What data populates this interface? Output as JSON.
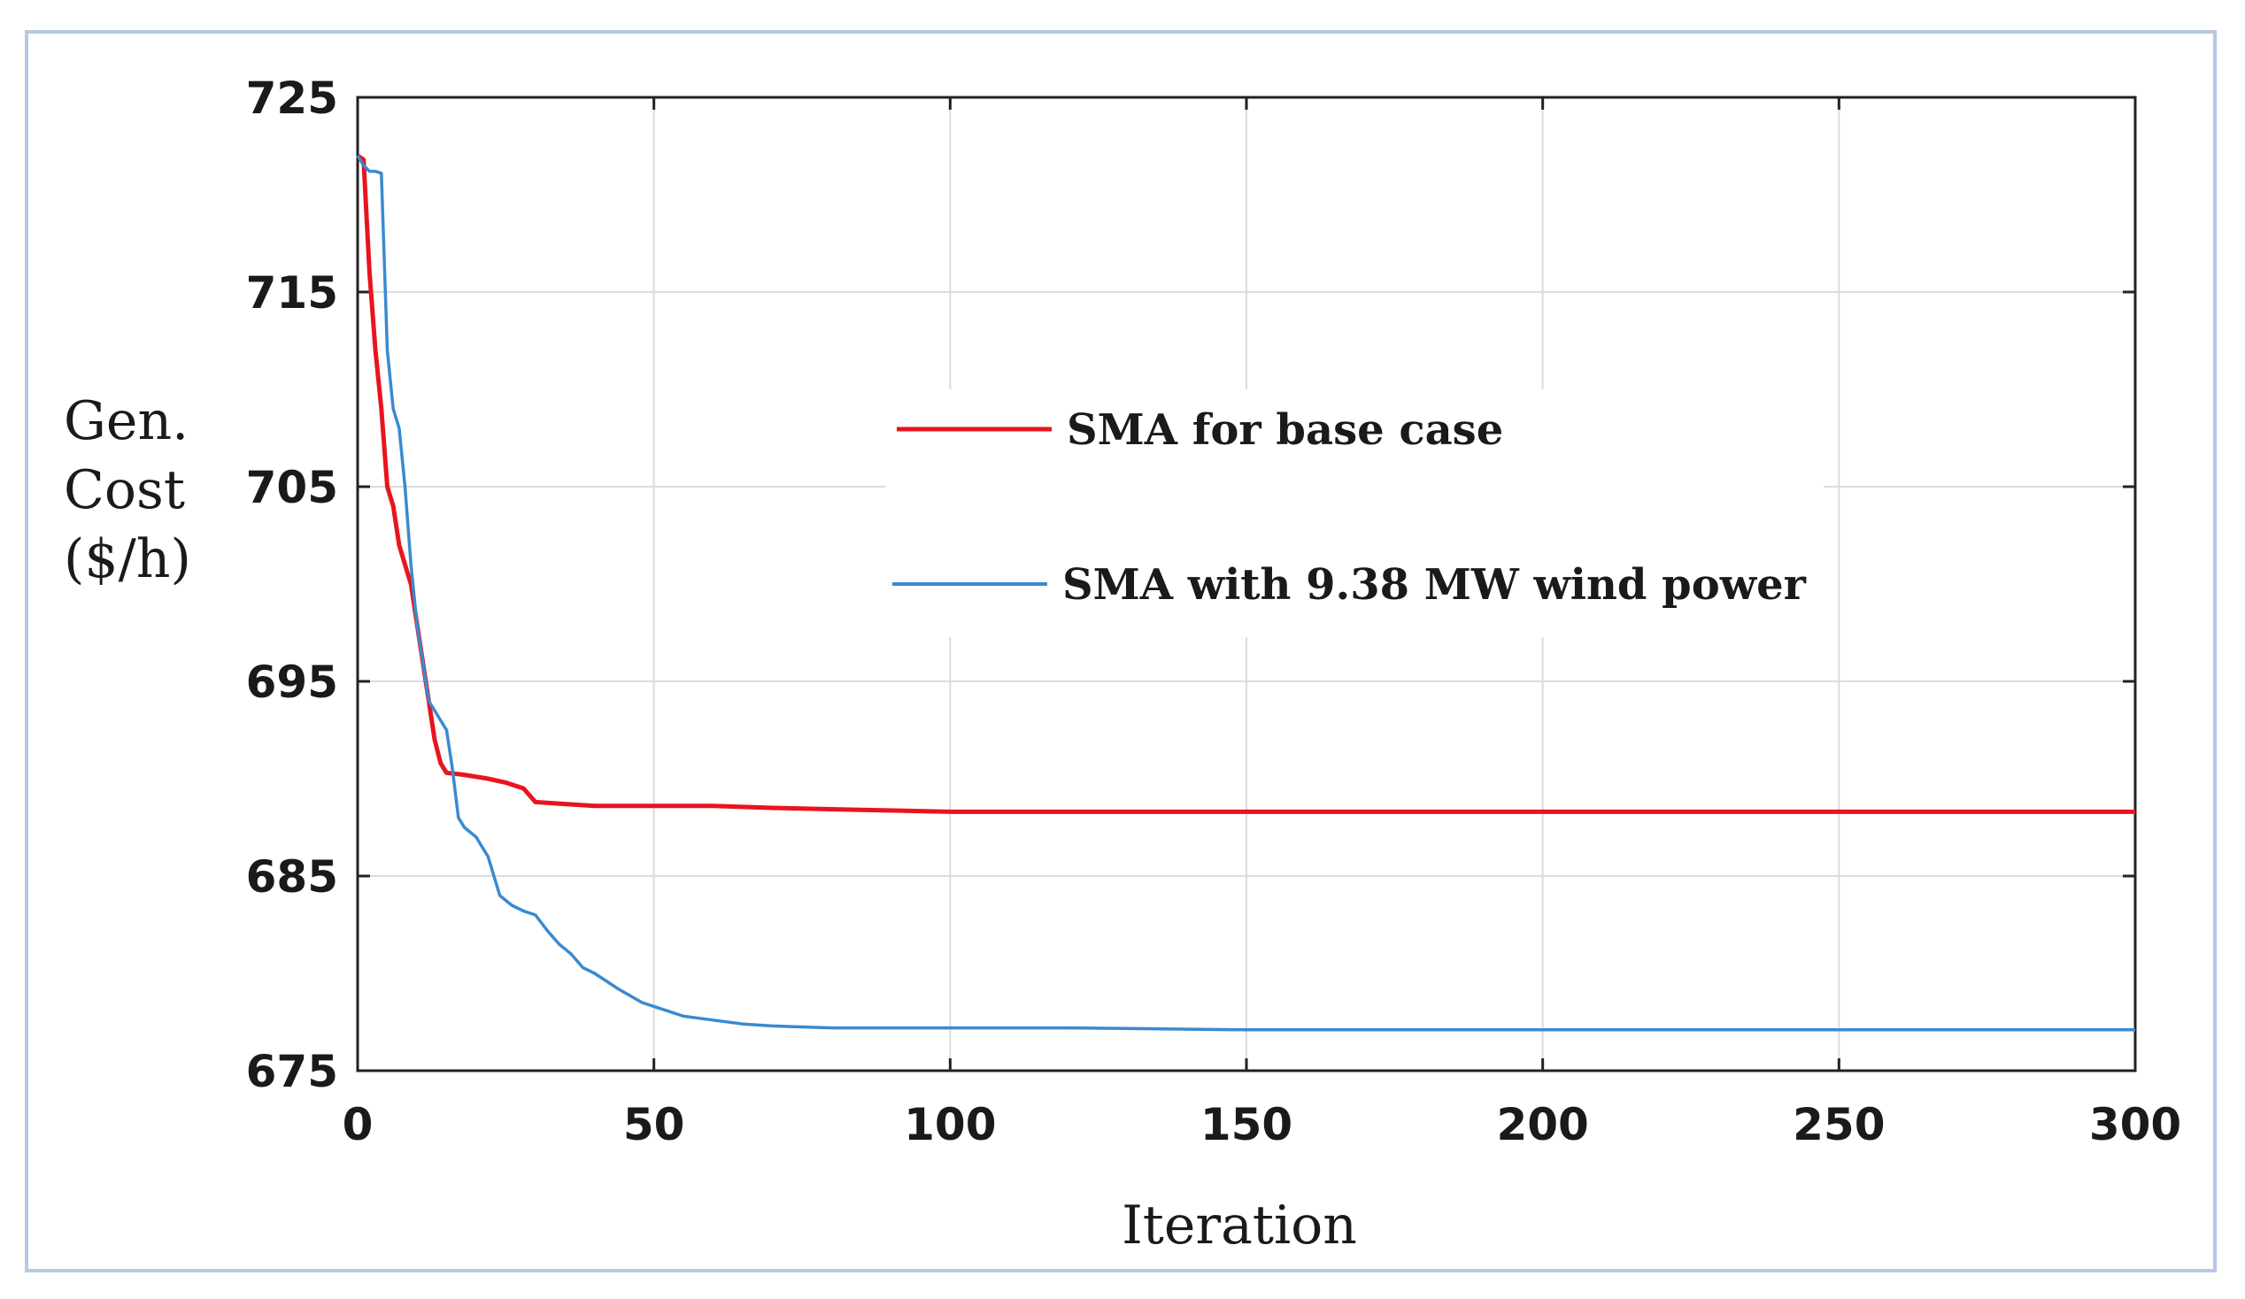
{
  "chart_data": {
    "type": "line",
    "title": "",
    "xlabel": "Iteration",
    "ylabel_lines": [
      "Gen.",
      "Cost",
      "($/h)"
    ],
    "xlim": [
      0,
      300
    ],
    "ylim": [
      675,
      725
    ],
    "xticks": [
      0,
      50,
      100,
      150,
      200,
      250,
      300
    ],
    "yticks": [
      675,
      685,
      695,
      705,
      715,
      725
    ],
    "grid": true,
    "legend_position": "center",
    "series": [
      {
        "name": "SMA for base case",
        "color": "#e8141f",
        "x": [
          0,
          1,
          2,
          3,
          4,
          5,
          6,
          7,
          8,
          9,
          10,
          11,
          12,
          13,
          14,
          15,
          18,
          22,
          25,
          28,
          30,
          35,
          40,
          50,
          60,
          70,
          85,
          100,
          150,
          200,
          250,
          300
        ],
        "y": [
          722,
          721.8,
          716,
          712,
          709,
          705,
          704,
          702,
          701,
          700,
          698,
          696,
          694,
          692,
          690.8,
          690.3,
          690.2,
          690,
          689.8,
          689.5,
          688.8,
          688.7,
          688.6,
          688.6,
          688.6,
          688.5,
          688.4,
          688.3,
          688.3,
          688.3,
          688.3,
          688.3
        ]
      },
      {
        "name": "SMA with 9.38 MW wind power",
        "color": "#3a8ad0",
        "x": [
          0,
          1,
          2,
          3,
          4,
          5,
          6,
          7,
          8,
          9,
          10,
          11,
          12,
          13,
          14,
          15,
          16,
          17,
          18,
          20,
          22,
          24,
          26,
          28,
          30,
          32,
          34,
          36,
          38,
          40,
          44,
          48,
          50,
          55,
          60,
          65,
          70,
          80,
          100,
          120,
          150,
          200,
          250,
          300
        ],
        "y": [
          722,
          721.5,
          721.2,
          721.2,
          721.1,
          712,
          709,
          708,
          705,
          701,
          698,
          696,
          694,
          693.5,
          693,
          692.5,
          690.5,
          688,
          687.5,
          687,
          686,
          684,
          683.5,
          683.2,
          683,
          682.2,
          681.5,
          681,
          680.3,
          680,
          679.2,
          678.5,
          678.3,
          677.8,
          677.6,
          677.4,
          677.3,
          677.2,
          677.2,
          677.2,
          677.1,
          677.1,
          677.1,
          677.1
        ]
      }
    ]
  }
}
